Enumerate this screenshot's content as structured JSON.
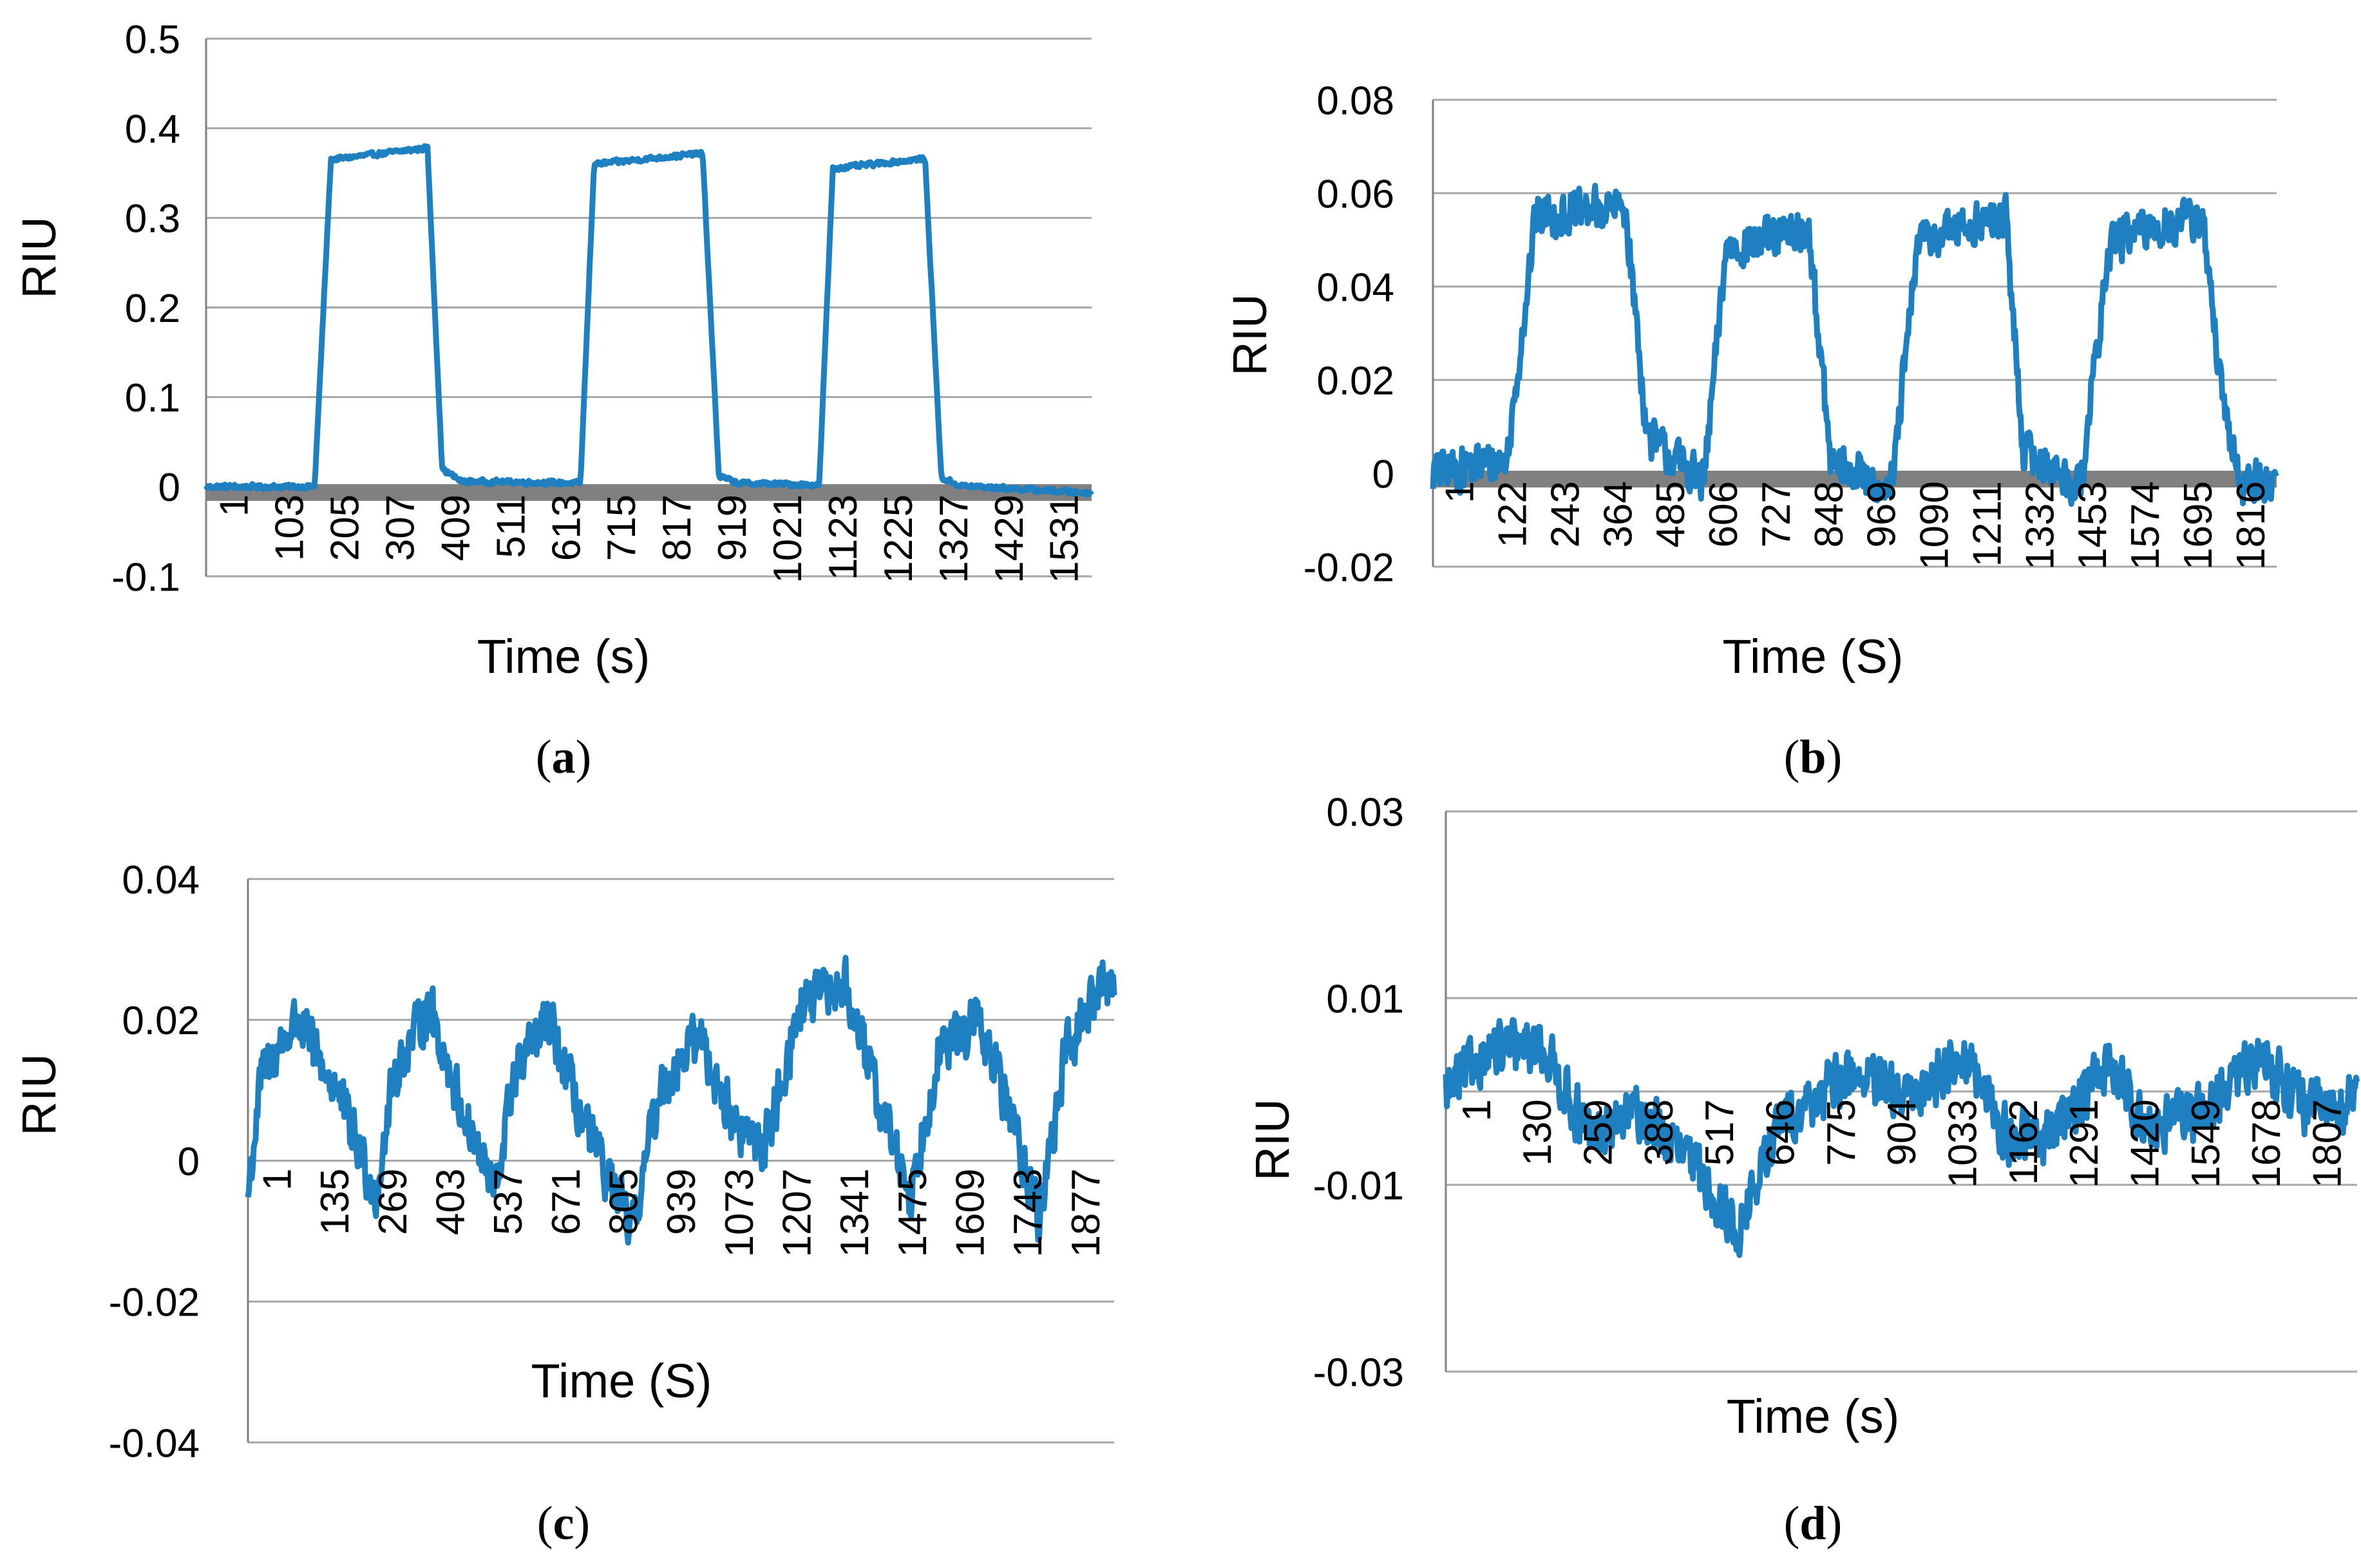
{
  "colors": {
    "trace": "#1f80c1",
    "grid": "#a6a6a6",
    "zero_bar": "#808080",
    "axis": "#7f7f7f"
  },
  "chart_data": [
    {
      "type": "line",
      "panel": "a",
      "caption": "(a)",
      "ylabel": "RIU",
      "xlabel": "Time (s)",
      "ylim": [
        -0.1,
        0.5
      ],
      "y_ticks": [
        "-0.1",
        "0",
        "0.1",
        "0.2",
        "0.3",
        "0.4",
        "0.5"
      ],
      "x_tick_labels": [
        "1",
        "103",
        "205",
        "307",
        "409",
        "511",
        "613",
        "715",
        "817",
        "919",
        "1021",
        "1123",
        "1225",
        "1327",
        "1429",
        "1531"
      ],
      "x_max": 1632,
      "series": [
        {
          "name": "RIU",
          "baseline": 0,
          "noise": 0.003,
          "segments": [
            [
              0,
              0
            ],
            [
              200,
              0
            ],
            [
              230,
              0.365
            ],
            [
              408,
              0.378
            ],
            [
              435,
              0.02
            ],
            [
              470,
              0.006
            ],
            [
              690,
              0.004
            ],
            [
              715,
              0.36
            ],
            [
              915,
              0.372
            ],
            [
              945,
              0.012
            ],
            [
              980,
              0.004
            ],
            [
              1130,
              0.002
            ],
            [
              1155,
              0.355
            ],
            [
              1325,
              0.366
            ],
            [
              1355,
              0.01
            ],
            [
              1390,
              0.001
            ],
            [
              1632,
              -0.007
            ]
          ]
        }
      ]
    },
    {
      "type": "line",
      "panel": "b",
      "caption": "(b)",
      "ylabel": "RIU",
      "xlabel": "Time (S)",
      "ylim": [
        -0.02,
        0.08
      ],
      "y_ticks": [
        "-0.02",
        "0",
        "0.02",
        "0.04",
        "0.06",
        "0.08"
      ],
      "x_tick_labels": [
        "1",
        "122",
        "243",
        "364",
        "485",
        "606",
        "727",
        "848",
        "969",
        "1090",
        "1211",
        "1332",
        "1453",
        "1574",
        "1695",
        "1816"
      ],
      "x_max": 1930,
      "series": [
        {
          "name": "RIU",
          "baseline": 0,
          "noise": 0.0055,
          "segments": [
            [
              0,
              0
            ],
            [
              170,
              0.003
            ],
            [
              235,
              0.055
            ],
            [
              440,
              0.057
            ],
            [
              490,
              0.008
            ],
            [
              620,
              -0.002
            ],
            [
              670,
              0.048
            ],
            [
              860,
              0.052
            ],
            [
              910,
              0.002
            ],
            [
              1050,
              -0.003
            ],
            [
              1110,
              0.05
            ],
            [
              1310,
              0.055
            ],
            [
              1350,
              0.005
            ],
            [
              1480,
              -0.003
            ],
            [
              1550,
              0.05
            ],
            [
              1760,
              0.055
            ],
            [
              1810,
              0.012
            ],
            [
              1850,
              -0.002
            ]
          ]
        }
      ]
    },
    {
      "type": "line",
      "panel": "c",
      "caption": "(c)",
      "ylabel": "RIU",
      "xlabel": "Time (S)",
      "ylim": [
        -0.04,
        0.04
      ],
      "y_ticks": [
        "-0.04",
        "-0.02",
        "0",
        "0.02",
        "0.04"
      ],
      "x_tick_labels": [
        "1",
        "135",
        "269",
        "403",
        "537",
        "671",
        "805",
        "939",
        "1073",
        "1207",
        "1341",
        "1475",
        "1609",
        "1743",
        "1877"
      ],
      "x_max": 1960,
      "series": [
        {
          "name": "RIU",
          "baseline": 0,
          "noise": 0.0045,
          "segments": [
            [
              0,
              -0.005
            ],
            [
              30,
              0.012
            ],
            [
              110,
              0.02
            ],
            [
              200,
              0.01
            ],
            [
              290,
              -0.005
            ],
            [
              330,
              0.012
            ],
            [
              410,
              0.022
            ],
            [
              480,
              0.008
            ],
            [
              560,
              -0.005
            ],
            [
              600,
              0.012
            ],
            [
              680,
              0.02
            ],
            [
              760,
              0.005
            ],
            [
              870,
              -0.01
            ],
            [
              930,
              0.01
            ],
            [
              1020,
              0.018
            ],
            [
              1100,
              0.005
            ],
            [
              1170,
              0.002
            ],
            [
              1250,
              0.022
            ],
            [
              1350,
              0.025
            ],
            [
              1420,
              0.01
            ],
            [
              1500,
              -0.005
            ],
            [
              1560,
              0.015
            ],
            [
              1650,
              0.02
            ],
            [
              1720,
              0.008
            ],
            [
              1790,
              -0.008
            ],
            [
              1850,
              0.015
            ],
            [
              1930,
              0.025
            ]
          ]
        }
      ]
    },
    {
      "type": "line",
      "panel": "d",
      "caption": "(d)",
      "ylabel": "RIU",
      "xlabel": "Time (s)",
      "ylim": [
        -0.03,
        0.03
      ],
      "y_ticks": [
        "-0.03",
        "-0.01",
        "0.01",
        "0.03"
      ],
      "x_tick_labels": [
        "1",
        "130",
        "259",
        "388",
        "517",
        "646",
        "775",
        "904",
        "1033",
        "1162",
        "1291",
        "1420",
        "1549",
        "1678",
        "1807"
      ],
      "x_max": 1900,
      "series": [
        {
          "name": "RIU",
          "baseline": 0,
          "noise": 0.0035,
          "segments": [
            [
              0,
              0
            ],
            [
              80,
              0.004
            ],
            [
              200,
              0.005
            ],
            [
              300,
              -0.005
            ],
            [
              400,
              -0.002
            ],
            [
              520,
              -0.008
            ],
            [
              610,
              -0.015
            ],
            [
              700,
              -0.003
            ],
            [
              850,
              0.002
            ],
            [
              960,
              -0.001
            ],
            [
              1080,
              0.004
            ],
            [
              1170,
              -0.005
            ],
            [
              1250,
              -0.005
            ],
            [
              1380,
              0.003
            ],
            [
              1470,
              -0.004
            ],
            [
              1580,
              -0.002
            ],
            [
              1700,
              0.004
            ],
            [
              1800,
              -0.002
            ],
            [
              1900,
              -0.001
            ]
          ]
        }
      ]
    }
  ]
}
